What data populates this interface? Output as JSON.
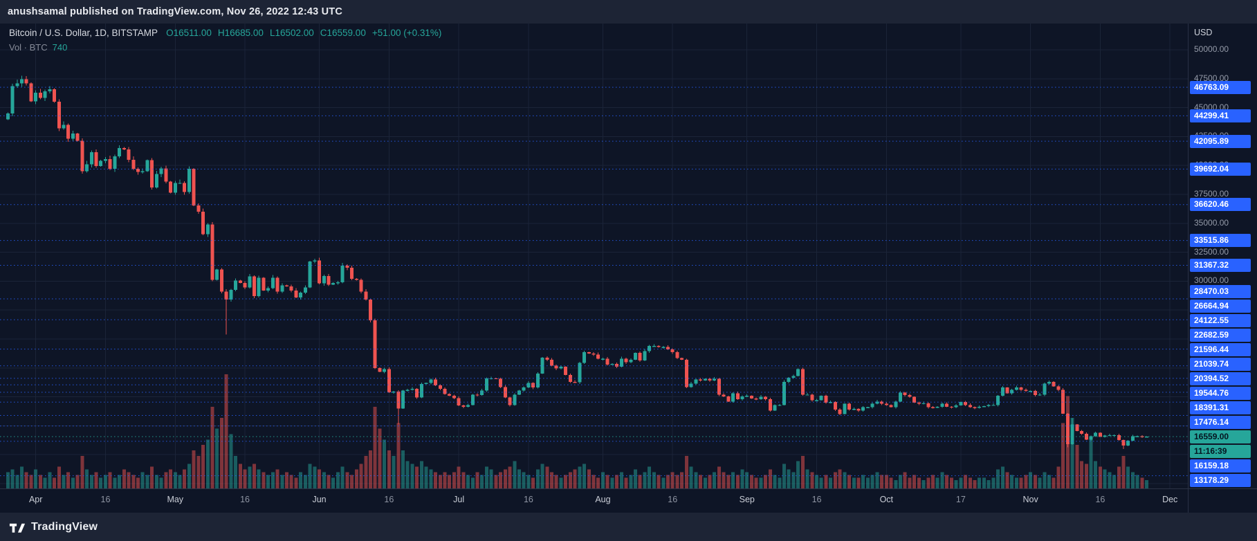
{
  "page": {
    "top_bar": {
      "text": "anushsamal published on TradingView.com, Nov 26, 2022 12:43 UTC"
    },
    "footer": {
      "brand": "TradingView"
    }
  },
  "header": {
    "symbol_line": "Bitcoin / U.S. Dollar, 1D, BITSTAMP",
    "ohlc_items": [
      "O16511.00",
      "H16685.00",
      "L16502.00",
      "C16559.00",
      "+51.00 (+0.31%)"
    ],
    "vol_label": "Vol · BTC",
    "vol_value": "740"
  },
  "colors": {
    "bg": "#0e1526",
    "panel": "#1d2435",
    "grid": "#1b2438",
    "up": "#26a69a",
    "down": "#ef5350",
    "up_volume": "rgba(38,166,154,0.5)",
    "down_volume": "rgba(239,83,80,0.5)",
    "alert_line": "#2962ff",
    "badge_blue": "#2962ff",
    "axis_text": "#9aa0ab"
  },
  "chart_data": {
    "type": "candlestick",
    "title": "Bitcoin / U.S. Dollar, 1D, BITSTAMP",
    "symbol": "BTCUSD",
    "exchange": "BITSTAMP",
    "interval": "1D",
    "volume_unit": "BTC",
    "price_axis": {
      "currency": "USD",
      "min": 12500,
      "max": 50000,
      "tick_step": 2500
    },
    "x_axis": {
      "start_date": "2022-03-26",
      "labels": [
        {
          "label": "Apr",
          "day": 6
        },
        {
          "label": "16",
          "day": 21
        },
        {
          "label": "May",
          "day": 36
        },
        {
          "label": "16",
          "day": 51
        },
        {
          "label": "Jun",
          "day": 67
        },
        {
          "label": "16",
          "day": 82
        },
        {
          "label": "Jul",
          "day": 97
        },
        {
          "label": "16",
          "day": 112
        },
        {
          "label": "Aug",
          "day": 128
        },
        {
          "label": "16",
          "day": 143
        },
        {
          "label": "Sep",
          "day": 159
        },
        {
          "label": "16",
          "day": 174
        },
        {
          "label": "Oct",
          "day": 189
        },
        {
          "label": "17",
          "day": 205
        },
        {
          "label": "Nov",
          "day": 220
        },
        {
          "label": "16",
          "day": 235
        },
        {
          "label": "Dec",
          "day": 250
        }
      ]
    },
    "alert_prices": [
      46763.09,
      44299.41,
      42095.89,
      39692.04,
      36620.46,
      33515.86,
      31367.32,
      28470.03,
      26664.94,
      24122.55,
      22682.59,
      21596.44,
      21039.74,
      20394.52,
      19544.76,
      18391.31,
      17476.14,
      16159.18,
      13178.29
    ],
    "last_price": {
      "value": 16559.0,
      "display": "16559.00",
      "countdown": "11:16:39"
    },
    "open_first": 44000,
    "wick_overrides": {
      "3": {
        "high": 47750
      },
      "47": {
        "low": 25400
      },
      "84": {
        "low": 17600
      },
      "228": {
        "low": 15630
      },
      "229": {
        "high": 18150
      },
      "240": {
        "low": 15480
      }
    },
    "months": [
      {
        "name": "Mar 26-31",
        "closes": [
          44500,
          46850,
          47100,
          47450,
          47100,
          45550
        ],
        "volumes": [
          6,
          7,
          5,
          8,
          6,
          5
        ]
      },
      {
        "name": "Apr",
        "closes": [
          46300,
          45850,
          46400,
          46600,
          45500,
          43200,
          43500,
          42300,
          42750,
          42150,
          39500,
          40100,
          41150,
          39950,
          40400,
          40550,
          39700,
          40800,
          41500,
          41400,
          40500,
          39700,
          39450,
          39500,
          40450,
          38100,
          39250,
          39750,
          38600,
          37650
        ],
        "volumes": [
          7,
          5,
          4,
          6,
          4,
          8,
          5,
          6,
          4,
          5,
          12,
          7,
          5,
          6,
          4,
          5,
          6,
          4,
          5,
          7,
          6,
          5,
          4,
          6,
          5,
          8,
          5,
          4,
          6,
          7
        ]
      },
      {
        "name": "May",
        "closes": [
          38500,
          38500,
          37700,
          39700,
          36550,
          36000,
          34050,
          34900,
          30100,
          31000,
          29100,
          28400,
          29250,
          30050,
          29850,
          29450,
          30400,
          28700,
          30300,
          29200,
          29400,
          30300,
          29100,
          29650,
          29550,
          29200,
          28600,
          29000,
          29450,
          31700,
          31800
        ],
        "volumes": [
          6,
          5,
          7,
          9,
          14,
          12,
          16,
          18,
          30,
          22,
          26,
          42,
          20,
          12,
          9,
          7,
          8,
          9,
          7,
          6,
          5,
          6,
          7,
          5,
          6,
          5,
          4,
          6,
          5,
          9,
          8
        ]
      },
      {
        "name": "Jun",
        "closes": [
          29800,
          30450,
          29700,
          29850,
          29900,
          31350,
          31150,
          30200,
          30100,
          29100,
          28400,
          26600,
          22500,
          22150,
          22400,
          20400,
          20450,
          19000,
          20550,
          20600,
          20700,
          19950,
          21100,
          21200,
          21500,
          21000,
          20700,
          20250,
          20100,
          19900
        ],
        "volumes": [
          7,
          6,
          5,
          4,
          6,
          8,
          6,
          5,
          7,
          9,
          12,
          14,
          30,
          22,
          18,
          14,
          12,
          24,
          14,
          10,
          9,
          8,
          10,
          8,
          7,
          6,
          5,
          6,
          5,
          6
        ]
      },
      {
        "name": "Jul",
        "closes": [
          19250,
          19150,
          19300,
          20200,
          20150,
          20550,
          21600,
          21600,
          21550,
          20850,
          19950,
          19300,
          20200,
          20550,
          20800,
          21200,
          20800,
          22000,
          23400,
          23200,
          22700,
          22450,
          22600,
          21900,
          21300,
          21250,
          22950,
          23850,
          23750,
          23650,
          23300
        ],
        "volumes": [
          8,
          6,
          5,
          4,
          6,
          5,
          8,
          7,
          5,
          6,
          7,
          8,
          10,
          7,
          6,
          5,
          4,
          7,
          9,
          8,
          6,
          5,
          4,
          5,
          6,
          7,
          8,
          9,
          7,
          5,
          4
        ]
      },
      {
        "name": "Aug",
        "closes": [
          23300,
          22800,
          22850,
          22600,
          23300,
          23000,
          23200,
          23800,
          23150,
          23950,
          24400,
          24400,
          24300,
          24300,
          24100,
          23850,
          23350,
          23200,
          20850,
          21150,
          21500,
          21400,
          21550,
          21400,
          21550,
          20200,
          20050,
          19600,
          20300,
          19800,
          20050
        ],
        "volumes": [
          6,
          5,
          4,
          5,
          6,
          4,
          5,
          7,
          5,
          6,
          8,
          6,
          5,
          4,
          5,
          6,
          5,
          6,
          12,
          8,
          6,
          5,
          4,
          5,
          6,
          8,
          6,
          5,
          6,
          5,
          7
        ]
      },
      {
        "name": "Sep",
        "closes": [
          20100,
          19850,
          19800,
          20000,
          19800,
          18800,
          19300,
          19300,
          21300,
          21650,
          21800,
          22400,
          20200,
          20200,
          19700,
          19700,
          20100,
          19500,
          19550,
          18900,
          18500,
          19400,
          18900,
          18950,
          18800,
          19100,
          19100,
          19400,
          19600,
          19400
        ],
        "volumes": [
          6,
          5,
          4,
          4,
          5,
          7,
          5,
          4,
          9,
          7,
          6,
          10,
          12,
          7,
          6,
          5,
          4,
          5,
          4,
          6,
          7,
          6,
          5,
          4,
          4,
          5,
          4,
          5,
          6,
          5
        ]
      },
      {
        "name": "Oct",
        "closes": [
          19300,
          19100,
          19600,
          20350,
          20150,
          20000,
          19500,
          19400,
          19450,
          19100,
          19050,
          19150,
          19400,
          19150,
          19100,
          19250,
          19550,
          19300,
          19100,
          19050,
          19150,
          19200,
          19300,
          19300,
          20100,
          20800,
          20300,
          20600,
          20800,
          20600,
          20500
        ],
        "volumes": [
          5,
          4,
          3,
          5,
          6,
          4,
          5,
          4,
          3,
          4,
          5,
          4,
          6,
          5,
          4,
          3,
          4,
          5,
          4,
          3,
          4,
          4,
          3,
          4,
          7,
          8,
          6,
          5,
          4,
          4,
          5
        ]
      },
      {
        "name": "Nov 1-26",
        "closes": [
          20500,
          20150,
          20200,
          21150,
          21300,
          20900,
          20600,
          18550,
          15900,
          17600,
          17050,
          16800,
          16300,
          16600,
          16900,
          16550,
          16650,
          16700,
          16700,
          16280,
          15800,
          16200,
          16600,
          16600,
          16500,
          16559
        ],
        "volumes": [
          6,
          5,
          4,
          6,
          5,
          4,
          8,
          24,
          34,
          26,
          16,
          10,
          9,
          18,
          10,
          8,
          7,
          6,
          5,
          8,
          12,
          8,
          6,
          5,
          4,
          3
        ]
      }
    ]
  }
}
